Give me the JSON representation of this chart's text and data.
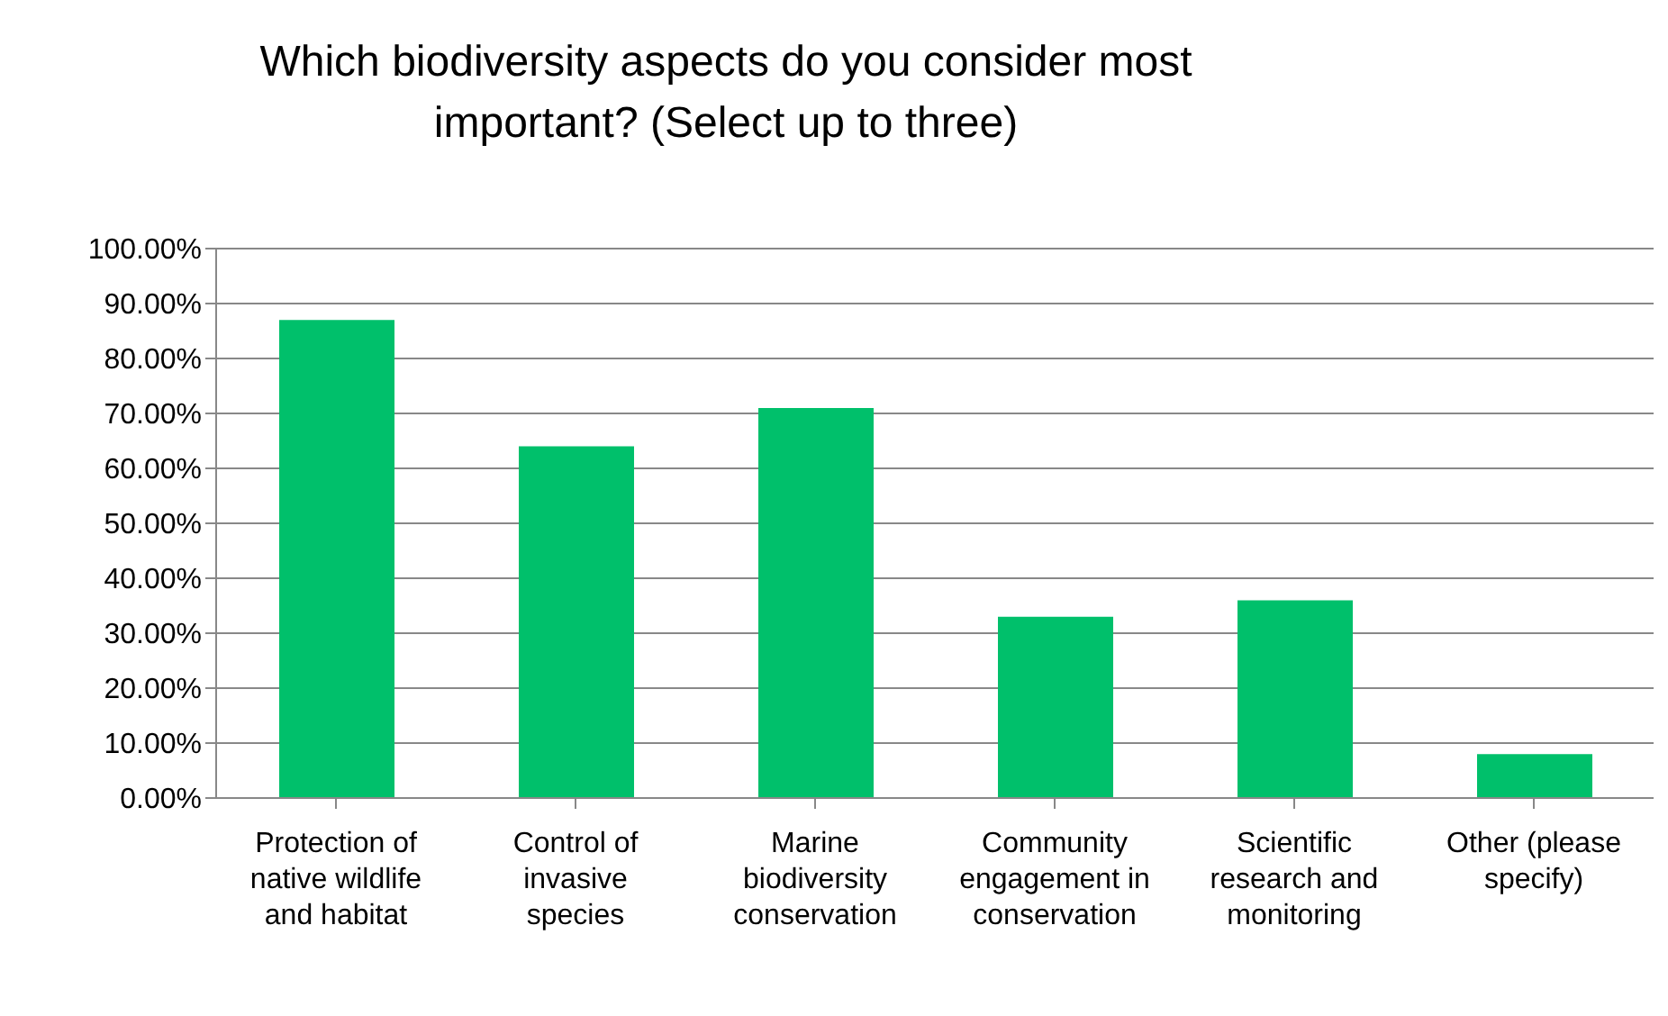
{
  "chart_data": {
    "type": "bar",
    "title": "Which biodiversity aspects do you consider most important? (Select up to three)",
    "categories": [
      "Protection of native wildlife and habitat",
      "Control of invasive species",
      "Marine biodiversity conservation",
      "Community engagement in conservation",
      "Scientific research and monitoring",
      "Other (please specify)"
    ],
    "values": [
      87,
      64,
      71,
      33,
      36,
      8
    ],
    "color": "#00c06b",
    "ylim": [
      0,
      100
    ],
    "yticks": [
      {
        "value": 0,
        "label": "0.00%"
      },
      {
        "value": 10,
        "label": "10.00%"
      },
      {
        "value": 20,
        "label": "20.00%"
      },
      {
        "value": 30,
        "label": "30.00%"
      },
      {
        "value": 40,
        "label": "40.00%"
      },
      {
        "value": 50,
        "label": "50.00%"
      },
      {
        "value": 60,
        "label": "60.00%"
      },
      {
        "value": 70,
        "label": "70.00%"
      },
      {
        "value": 80,
        "label": "80.00%"
      },
      {
        "value": 90,
        "label": "90.00%"
      },
      {
        "value": 100,
        "label": "100.00%"
      }
    ],
    "grid": "y",
    "legend": false
  }
}
